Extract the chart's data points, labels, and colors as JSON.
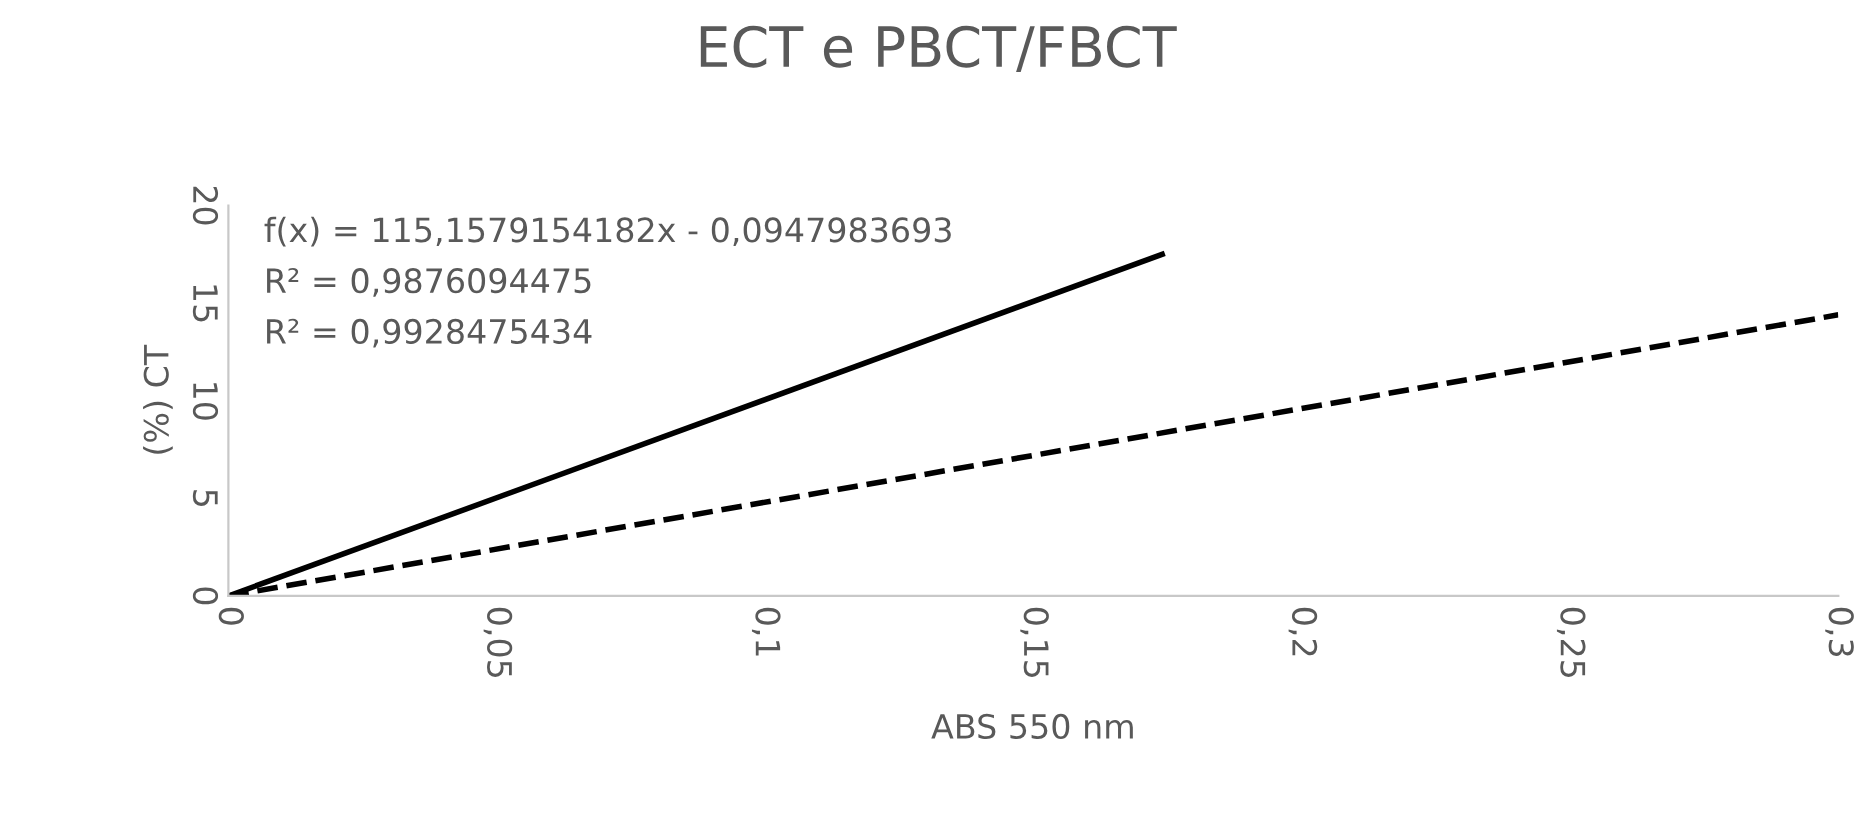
{
  "chart_data": {
    "type": "line",
    "title": "ECT e PBCT/FBCT",
    "xlabel": "ABS 550 nm",
    "ylabel": "(%) CT",
    "series": [
      {
        "color": "#000000",
        "line_style": "solid",
        "x": [
          0,
          0.174
        ],
        "values": [
          0,
          17.5
        ]
      },
      {
        "color": "#000000",
        "line_style": "dashed",
        "x": [
          0,
          0.3
        ],
        "values": [
          0,
          14.4
        ]
      }
    ],
    "xlim": [
      0,
      0.3
    ],
    "xticks": [
      {
        "value": 0,
        "label": "0"
      },
      {
        "value": 0.05,
        "label": "0,05"
      },
      {
        "value": 0.1,
        "label": "0,1"
      },
      {
        "value": 0.15,
        "label": "0,15"
      },
      {
        "value": 0.2,
        "label": "0,2"
      },
      {
        "value": 0.25,
        "label": "0,25"
      },
      {
        "value": 0.3,
        "label": "0,3"
      }
    ],
    "ylim": [
      0,
      20
    ],
    "yticks": [
      0,
      5,
      10,
      15,
      20
    ],
    "annotations": [
      "f(x) = 115,1579154182x - 0,0947983693",
      "R² = 0,9876094475",
      "R² = 0,9928475434"
    ],
    "grid": false,
    "legend": false,
    "marker": "none"
  }
}
